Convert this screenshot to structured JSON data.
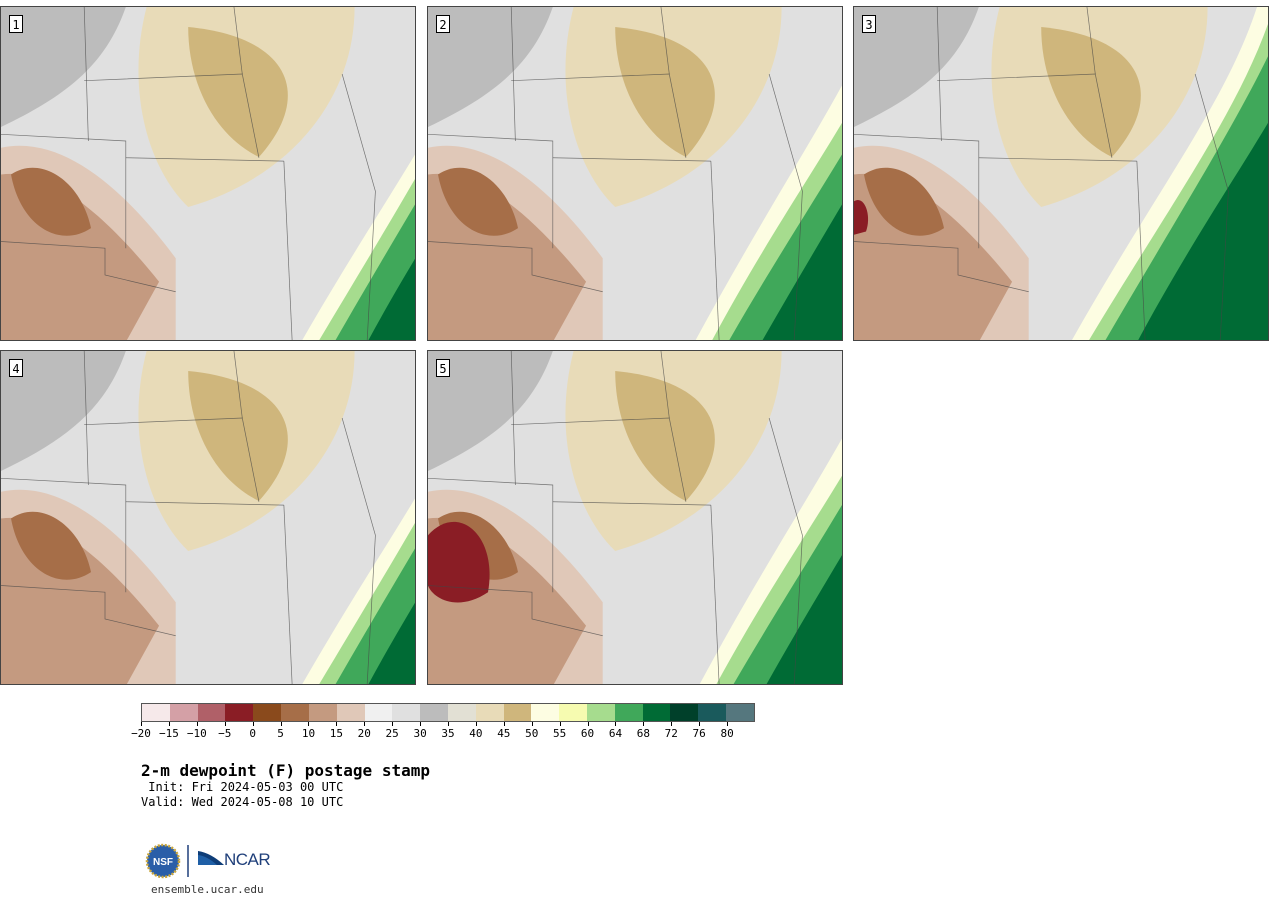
{
  "title": "2-m dewpoint (F) postage stamp",
  "init": " Init: Fri 2024-05-03 00 UTC",
  "valid": "Valid: Wed 2024-05-08 10 UTC",
  "website": "ensemble.ucar.edu",
  "logos": {
    "nsf": "NSF",
    "ncar": "NCAR"
  },
  "panels": [
    {
      "number": "1",
      "moisture_front": 0.55
    },
    {
      "number": "2",
      "moisture_front": 0.47
    },
    {
      "number": "3",
      "moisture_front": 0.35
    },
    {
      "number": "4",
      "moisture_front": 0.55
    },
    {
      "number": "5",
      "moisture_front": 0.48
    }
  ],
  "colorbar": {
    "tick_labels": [
      "−20",
      "−15",
      "−10",
      "−5",
      "0",
      "5",
      "10",
      "15",
      "20",
      "25",
      "30",
      "35",
      "40",
      "45",
      "50",
      "55",
      "60",
      "64",
      "68",
      "72",
      "76",
      "80"
    ],
    "colors": [
      "#f6e9ea",
      "#d4a0a6",
      "#b06068",
      "#8a1d25",
      "#8a4a1c",
      "#a66e48",
      "#c49a80",
      "#e0c8b8",
      "#f0f0f0",
      "#e0e0e0",
      "#bcbcbc",
      "#e2e0d4",
      "#e8dbb8",
      "#cfb67c",
      "#fdfde2",
      "#f6fbb0",
      "#a6dc8e",
      "#40a85a",
      "#006b35",
      "#00402a",
      "#1a5a5c",
      "#55777e"
    ]
  }
}
